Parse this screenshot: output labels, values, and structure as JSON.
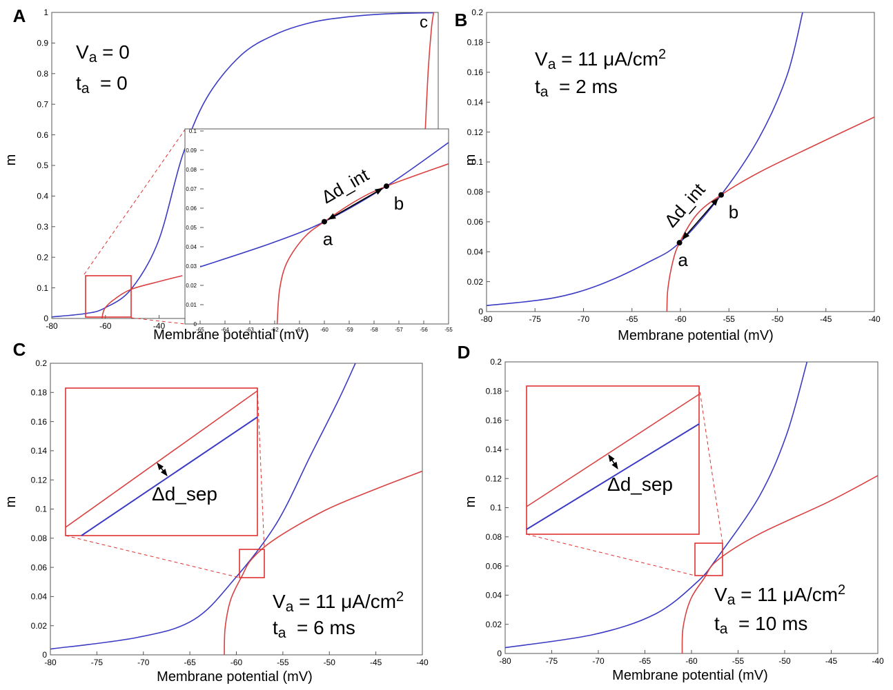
{
  "chart_data": [
    {
      "type": "line",
      "panel": "A",
      "xlabel": "Membrane potential (mV)",
      "ylabel": "m",
      "xlim": [
        -80,
        64
      ],
      "ylim": [
        0,
        1
      ],
      "xticks": [
        -80,
        -60,
        -40
      ],
      "yticks": [
        0,
        0.1,
        0.2,
        0.3,
        0.4,
        0.5,
        0.6,
        0.7,
        0.8,
        0.9,
        1
      ],
      "annotations": [
        {
          "symbol": "V",
          "sub": "a",
          "text": " = 0"
        },
        {
          "symbol": "t",
          "sub": "a",
          "text": "  = 0"
        }
      ],
      "marker_text": "c",
      "series": [
        {
          "color": "#3a3ac4",
          "x": [
            -80,
            -67.4,
            -60.3,
            -50.5,
            -40.3,
            -31.3,
            -22.3,
            -9.5,
            3.3,
            16.2,
            29,
            44.4,
            62.3
          ],
          "values": [
            0.005,
            0.016,
            0.034,
            0.095,
            0.252,
            0.532,
            0.72,
            0.86,
            0.928,
            0.966,
            0.984,
            0.995,
            0.999
          ]
        },
        {
          "color": "#d94040",
          "x": [
            -61.3,
            -60.3,
            -56.9,
            -50.5,
            -40.3,
            -31.3,
            null,
            59.2,
            60.3,
            61.5,
            62.3
          ],
          "values": [
            0,
            0.032,
            0.061,
            0.095,
            0.12,
            0.14,
            null,
            0.62,
            0.815,
            0.95,
            1
          ]
        }
      ]
    },
    {
      "type": "line",
      "xlim": [
        -65,
        -55
      ],
      "ylim": [
        0,
        0.1
      ],
      "xticks": [
        -65,
        -64,
        -63,
        -62,
        -61,
        -60,
        -59,
        -58,
        -57,
        -56,
        -55
      ],
      "yticks": [
        0,
        0.01,
        0.02,
        0.03,
        0.04,
        0.05,
        0.06,
        0.07,
        0.08,
        0.09,
        0.1
      ],
      "arrow_label": "Δd_int",
      "points": [
        {
          "label": "a",
          "x": -60,
          "y": 0.053
        },
        {
          "label": "b",
          "x": -57.5,
          "y": 0.0714
        }
      ],
      "series": [
        {
          "color": "#3a3ac4",
          "x": [
            -65,
            -62.1,
            -60,
            -57.5,
            -55
          ],
          "values": [
            0.0296,
            0.042,
            0.053,
            0.0714,
            0.094
          ]
        },
        {
          "color": "#d94040",
          "x": [
            -61.9,
            -61.8,
            -61.5,
            -60.8,
            -60,
            -58.7,
            -57.5,
            -55
          ],
          "values": [
            0,
            0.018,
            0.032,
            0.045,
            0.053,
            0.064,
            0.0714,
            0.083
          ]
        }
      ]
    },
    {
      "type": "line",
      "panel": "B",
      "xlabel": "Membrane potential (mV)",
      "ylabel": "m",
      "xlim": [
        -80,
        -40
      ],
      "ylim": [
        0,
        0.2
      ],
      "xticks": [
        -80,
        -75,
        -70,
        -65,
        -60,
        -55,
        -50,
        -45,
        -40
      ],
      "yticks": [
        0,
        0.02,
        0.04,
        0.06,
        0.08,
        0.1,
        0.12,
        0.14,
        0.16,
        0.18,
        0.2
      ],
      "annotations": [
        {
          "symbol": "V",
          "sub": "a",
          "text": " = 11 μA/cm",
          "sup": "2"
        },
        {
          "symbol": "t",
          "sub": "a",
          "text": "  = 2 ms"
        }
      ],
      "arrow_label": "Δd_int",
      "points": [
        {
          "label": "a",
          "x": -60.1,
          "y": 0.046
        },
        {
          "label": "b",
          "x": -55.8,
          "y": 0.078
        }
      ],
      "series": [
        {
          "color": "#3a3ac4",
          "x": [
            -80,
            -73.2,
            -68.3,
            -63.3,
            -60.1,
            -55.8,
            -51.9,
            -49,
            -47.4
          ],
          "values": [
            0.004,
            0.009,
            0.018,
            0.033,
            0.046,
            0.078,
            0.116,
            0.158,
            0.2
          ]
        },
        {
          "color": "#d94040",
          "x": [
            -61.4,
            -61.3,
            -60.8,
            -60.1,
            -58.3,
            -55.8,
            -51.9,
            -46.2,
            -40
          ],
          "values": [
            0,
            0.015,
            0.033,
            0.046,
            0.065,
            0.078,
            0.093,
            0.111,
            0.13
          ]
        }
      ]
    },
    {
      "type": "line",
      "panel": "C",
      "xlabel": "Membrane potential (mV)",
      "ylabel": "m",
      "xlim": [
        -80,
        -40
      ],
      "ylim": [
        0,
        0.2
      ],
      "xticks": [
        -80,
        -75,
        -70,
        -65,
        -60,
        -55,
        -50,
        -45,
        -40
      ],
      "yticks": [
        0,
        0.02,
        0.04,
        0.06,
        0.08,
        0.1,
        0.12,
        0.14,
        0.16,
        0.18,
        0.2
      ],
      "annotations": [
        {
          "symbol": "V",
          "sub": "a",
          "text": " = 11 μA/cm",
          "sup": "2"
        },
        {
          "symbol": "t",
          "sub": "a",
          "text": "  = 6 ms"
        }
      ],
      "zoom_label": "Δd_sep",
      "series": [
        {
          "color": "#3a3ac4",
          "x": [
            -80,
            -70.6,
            -64.6,
            -60.2,
            -55.7,
            -52,
            -49,
            -47.2
          ],
          "values": [
            0.004,
            0.012,
            0.024,
            0.052,
            0.09,
            0.137,
            0.175,
            0.2
          ]
        },
        {
          "color": "#d94040",
          "x": [
            -61.3,
            -61.2,
            -60.6,
            -59.4,
            -58.3,
            -55.7,
            -50.5,
            -45.3,
            -40
          ],
          "values": [
            0,
            0.019,
            0.038,
            0.054,
            0.066,
            0.08,
            0.099,
            0.113,
            0.126
          ]
        }
      ]
    },
    {
      "type": "line",
      "panel": "D",
      "xlabel": "Membrane potential (mV)",
      "ylabel": "m",
      "xlim": [
        -80,
        -40
      ],
      "ylim": [
        0,
        0.2
      ],
      "xticks": [
        -80,
        -75,
        -70,
        -65,
        -60,
        -55,
        -50,
        -45,
        -40
      ],
      "yticks": [
        0,
        0.02,
        0.04,
        0.06,
        0.08,
        0.1,
        0.12,
        0.14,
        0.16,
        0.18,
        0.2
      ],
      "annotations": [
        {
          "symbol": "V",
          "sub": "a",
          "text": " = 11 μA/cm",
          "sup": "2"
        },
        {
          "symbol": "t",
          "sub": "a",
          "text": "  = 10 ms"
        }
      ],
      "zoom_label": "Δd_sep",
      "series": [
        {
          "color": "#3a3ac4",
          "x": [
            -80,
            -70.5,
            -63.9,
            -59.4,
            -57.2,
            -52.7,
            -49.8,
            -47.6
          ],
          "values": [
            0.004,
            0.013,
            0.027,
            0.049,
            0.066,
            0.108,
            0.15,
            0.2
          ]
        },
        {
          "color": "#d94040",
          "x": [
            -61,
            -60.9,
            -60.1,
            -58.7,
            -57.2,
            -52.7,
            -45.3,
            -40
          ],
          "values": [
            0,
            0.018,
            0.037,
            0.051,
            0.064,
            0.082,
            0.104,
            0.122
          ]
        }
      ]
    }
  ]
}
